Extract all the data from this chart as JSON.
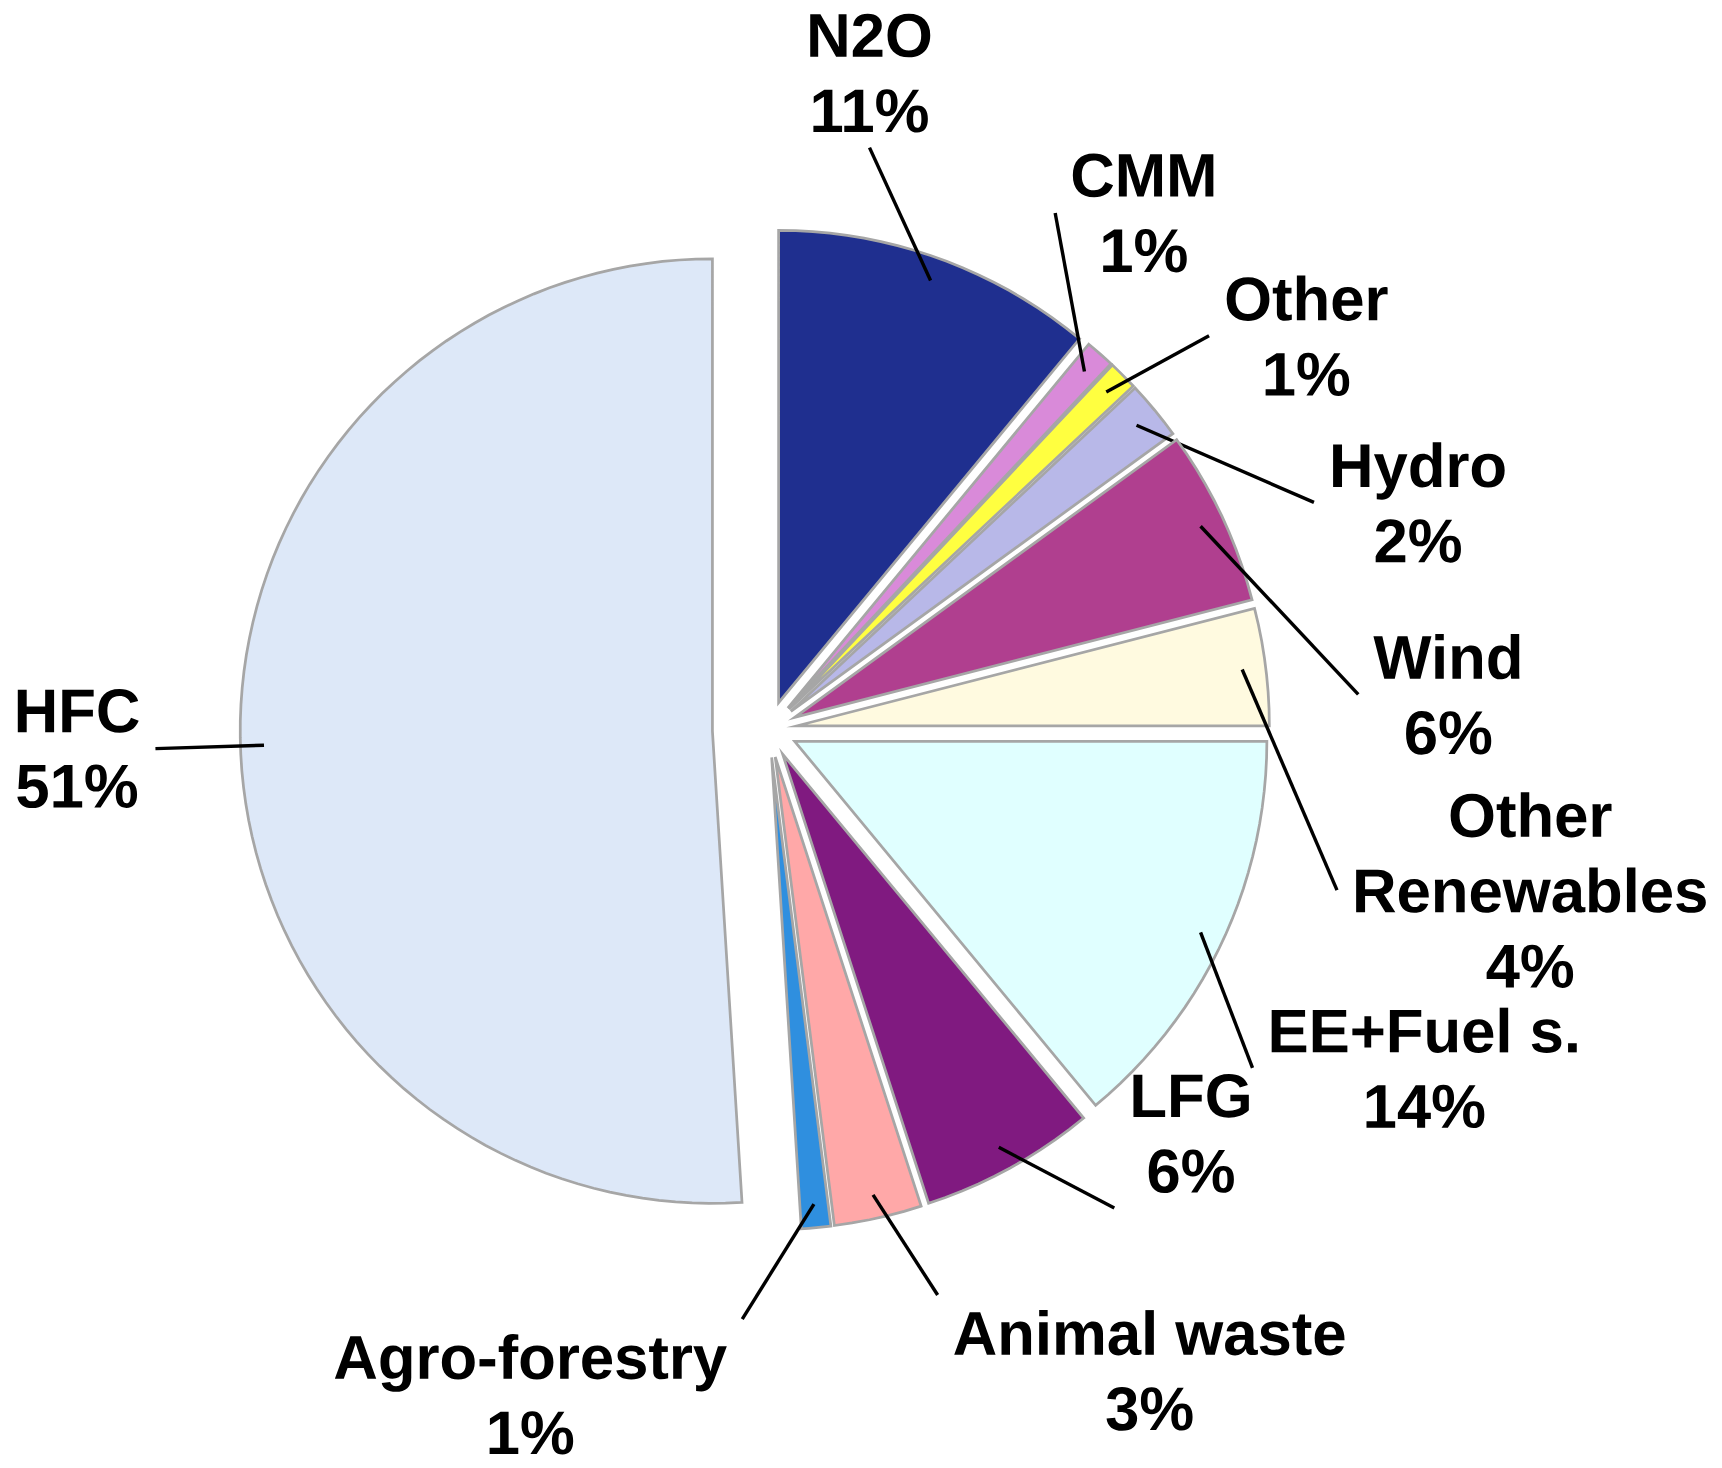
{
  "chart_data": {
    "type": "pie",
    "categories": [
      "N2O",
      "CMM",
      "Other",
      "Hydro",
      "Wind",
      "Other Renewables",
      "EE+Fuel s.",
      "LFG",
      "Animal waste",
      "Agro-forestry",
      "HFC"
    ],
    "values": [
      11,
      1,
      1,
      2,
      6,
      4,
      14,
      6,
      3,
      1,
      51
    ],
    "value_labels": [
      "11%",
      "1%",
      "1%",
      "2%",
      "6%",
      "4%",
      "14%",
      "6%",
      "3%",
      "1%",
      "51%"
    ],
    "colors": [
      "#1f2f8f",
      "#d98ad9",
      "#ffff40",
      "#b8b8e8",
      "#b03f8f",
      "#fffae0",
      "#e0ffff",
      "#801a80",
      "#ffa8a8",
      "#2f8fdf",
      "#dde8f8"
    ]
  }
}
